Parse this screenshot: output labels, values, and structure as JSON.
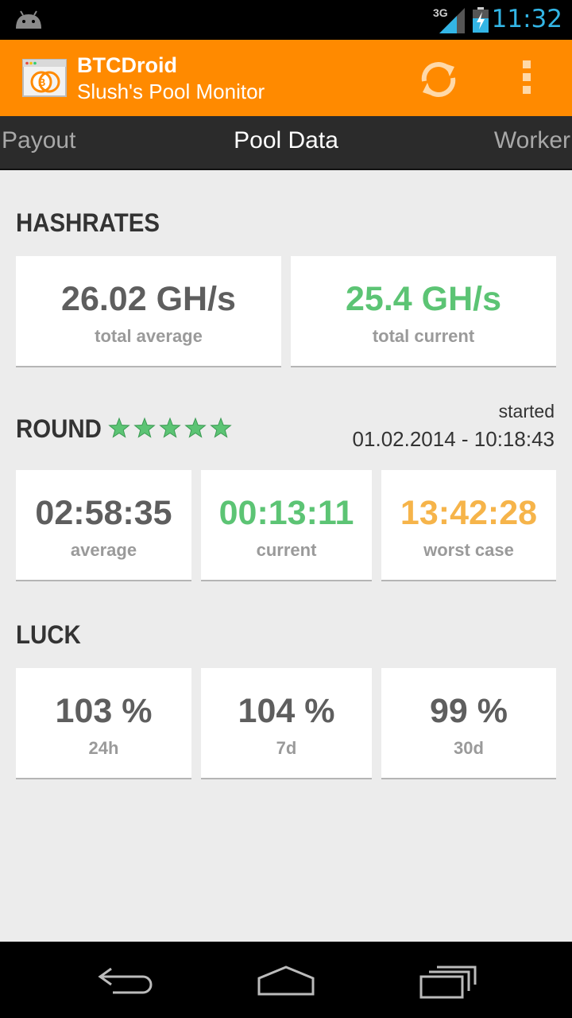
{
  "status_bar": {
    "network": "3G",
    "time": "11:32",
    "icons": [
      "android-icon",
      "signal-icon",
      "battery-charging-icon"
    ]
  },
  "action_bar": {
    "title": "BTCDroid",
    "subtitle": "Slush's Pool Monitor",
    "icons": [
      "app-logo-icon",
      "refresh-icon",
      "overflow-menu-icon"
    ],
    "accent_color": "#ff8a00"
  },
  "tabs": {
    "left": "Payout",
    "center": "Pool Data",
    "right": "Worker"
  },
  "hashrates": {
    "title": "HASHRATES",
    "average": {
      "value": "26.02 GH/s",
      "label": "total average"
    },
    "current": {
      "value": "25.4 GH/s",
      "label": "total current"
    }
  },
  "round": {
    "title": "ROUND",
    "stars": 5,
    "star_color": "#5cc474",
    "started_label": "started",
    "started_value": "01.02.2014 - 10:18:43",
    "average": {
      "value": "02:58:35",
      "label": "average"
    },
    "current": {
      "value": "00:13:11",
      "label": "current"
    },
    "worst": {
      "value": "13:42:28",
      "label": "worst case"
    }
  },
  "luck": {
    "title": "LUCK",
    "day": {
      "value": "103 %",
      "label": "24h"
    },
    "week": {
      "value": "104 %",
      "label": "7d"
    },
    "month": {
      "value": "99 %",
      "label": "30d"
    }
  },
  "nav_bar": {
    "icons": [
      "back-icon",
      "home-icon",
      "recent-apps-icon"
    ]
  }
}
